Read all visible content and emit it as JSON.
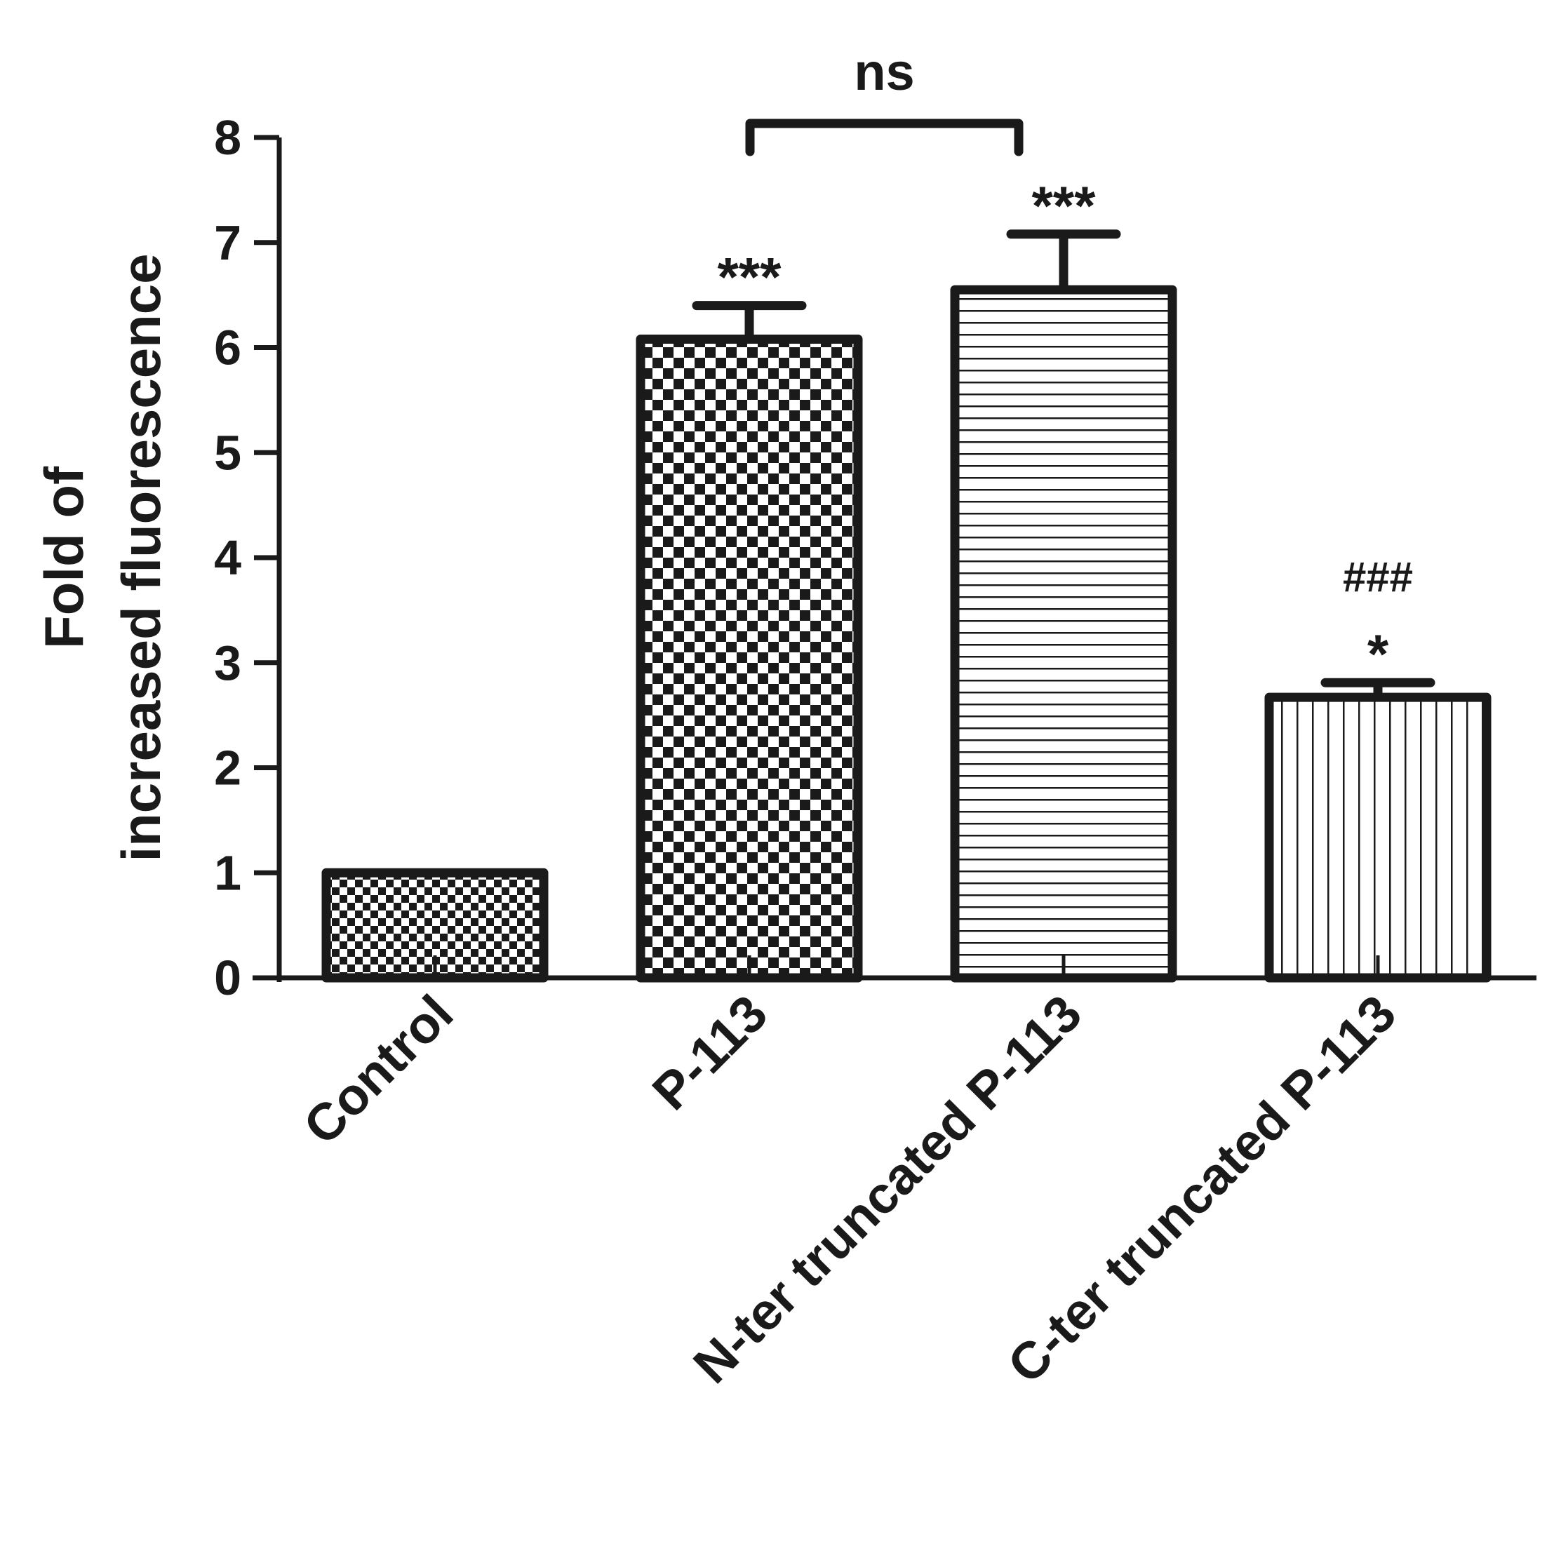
{
  "chart_data": {
    "type": "bar",
    "title": "",
    "xlabel": "",
    "ylabel_lines": [
      "Fold of",
      "increased fluorescence"
    ],
    "ylim": [
      0,
      8
    ],
    "yticks": [
      "0",
      "1",
      "2",
      "3",
      "4",
      "5",
      "6",
      "7",
      "8"
    ],
    "categories": [
      "Control",
      "P-113",
      "N-ter truncated P-113",
      "C-ter truncated P-113"
    ],
    "values": [
      1.0,
      6.08,
      6.55,
      2.67
    ],
    "errors": [
      0.0,
      0.32,
      0.53,
      0.14
    ],
    "patterns": [
      "fine-checker",
      "checker",
      "horizontal-lines",
      "vertical-lines"
    ],
    "significance": [
      "",
      "***",
      "***",
      "*"
    ],
    "secondary_significance": [
      "",
      "",
      "",
      "###"
    ],
    "bracket": {
      "from": "P-113",
      "to": "N-ter truncated P-113",
      "label": "ns"
    },
    "grid": false,
    "legend": "none",
    "colors": {
      "ink": "#1a1a1a",
      "background": "#ffffff"
    }
  }
}
